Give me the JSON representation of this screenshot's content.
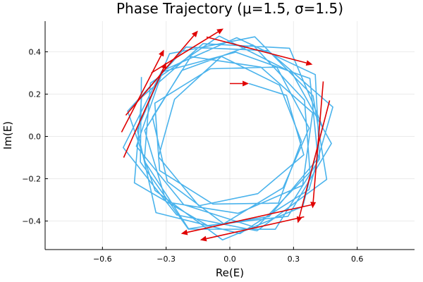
{
  "chart_data": {
    "type": "line",
    "title": "Phase Trajectory (μ=1.5, σ=1.5)",
    "xlabel": "Re(E)",
    "ylabel": "Im(E)",
    "xlim": [
      -0.87,
      0.87
    ],
    "ylim": [
      -0.535,
      0.545
    ],
    "xticks": [
      -0.6,
      -0.3,
      0.0,
      0.3,
      0.6
    ],
    "xtick_labels": [
      "−0.6",
      "−0.3",
      "0.0",
      "0.3",
      "0.6"
    ],
    "yticks": [
      -0.4,
      -0.2,
      0.0,
      0.2,
      0.4
    ],
    "ytick_labels": [
      "−0.4",
      "−0.2",
      "0.0",
      "0.2",
      "0.4"
    ],
    "grid": true,
    "legend": "none",
    "line_color": "#4ab3ec",
    "arrow_color": "#e00000",
    "trajectory": {
      "start": [
        0.09,
        0.25
      ],
      "spiral": {
        "turns": 11,
        "points_per_turn": 7,
        "r_start": 0.33,
        "r_end": 0.47,
        "start_angle_deg": 36,
        "step_deg": 50,
        "wobble": 0.035
      }
    },
    "arrows": [
      {
        "from": [
          0.0,
          0.25
        ],
        "to": [
          0.09,
          0.25
        ]
      },
      {
        "from": [
          -0.51,
          0.02
        ],
        "to": [
          -0.31,
          0.41
        ]
      },
      {
        "from": [
          -0.49,
          0.1
        ],
        "to": [
          -0.15,
          0.5
        ]
      },
      {
        "from": [
          -0.37,
          0.3
        ],
        "to": [
          -0.03,
          0.51
        ]
      },
      {
        "from": [
          -0.11,
          0.47
        ],
        "to": [
          0.39,
          0.34
        ]
      },
      {
        "from": [
          0.44,
          0.26
        ],
        "to": [
          0.39,
          -0.34
        ]
      },
      {
        "from": [
          0.47,
          0.17
        ],
        "to": [
          0.32,
          -0.41
        ]
      },
      {
        "from": [
          0.4,
          -0.32
        ],
        "to": [
          -0.23,
          -0.46
        ]
      },
      {
        "from": [
          0.35,
          -0.38
        ],
        "to": [
          -0.14,
          -0.49
        ]
      },
      {
        "from": [
          -0.5,
          -0.1
        ],
        "to": [
          -0.3,
          0.35
        ]
      }
    ]
  }
}
